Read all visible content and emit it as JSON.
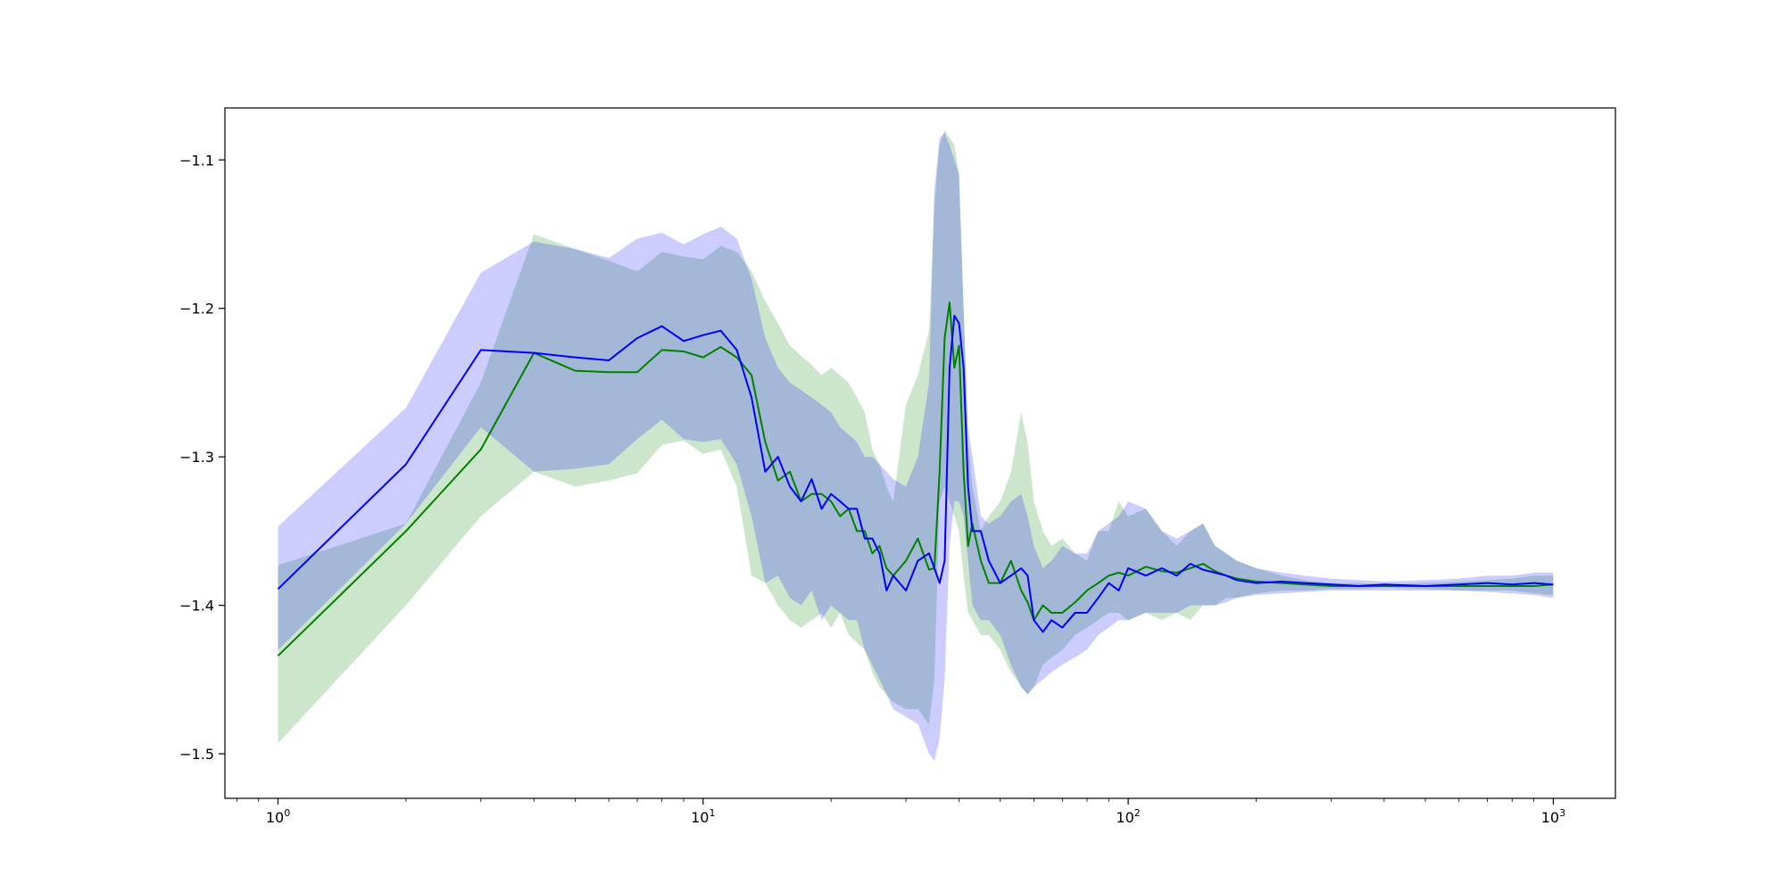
{
  "chart_data": {
    "type": "area",
    "x_scale": "log",
    "xlim": [
      0.75,
      1400
    ],
    "ylim": [
      -1.53,
      -1.065
    ],
    "x_ticks": [
      {
        "value": 1,
        "base": "10",
        "exp": "0"
      },
      {
        "value": 10,
        "base": "10",
        "exp": "1"
      },
      {
        "value": 100,
        "base": "10",
        "exp": "2"
      },
      {
        "value": 1000,
        "base": "10",
        "exp": "3"
      }
    ],
    "y_ticks": [
      {
        "value": -1.1,
        "label": "−1.1"
      },
      {
        "value": -1.2,
        "label": "−1.2"
      },
      {
        "value": -1.3,
        "label": "−1.3"
      },
      {
        "value": -1.4,
        "label": "−1.4"
      },
      {
        "value": -1.5,
        "label": "−1.5"
      }
    ],
    "grid": false,
    "series": [
      {
        "color": "#008000",
        "band_color": "#008000",
        "x": [
          1,
          2,
          3,
          4,
          5,
          6,
          7,
          8,
          9,
          10,
          11,
          12,
          13,
          14,
          15,
          16,
          17,
          18,
          19,
          20,
          21,
          22,
          23,
          24,
          25,
          26,
          27,
          28,
          30,
          32,
          34,
          35,
          36,
          37,
          38,
          39,
          40,
          41,
          42,
          43,
          45,
          47,
          50,
          53,
          56,
          58,
          60,
          63,
          66,
          70,
          75,
          80,
          85,
          90,
          95,
          100,
          110,
          120,
          130,
          140,
          150,
          160,
          170,
          180,
          200,
          230,
          260,
          300,
          350,
          400,
          500,
          600,
          700,
          800,
          900,
          1000
        ],
        "y": [
          -1.434,
          -1.35,
          -1.295,
          -1.23,
          -1.242,
          -1.243,
          -1.243,
          -1.228,
          -1.229,
          -1.233,
          -1.226,
          -1.233,
          -1.245,
          -1.29,
          -1.316,
          -1.31,
          -1.33,
          -1.325,
          -1.325,
          -1.33,
          -1.34,
          -1.335,
          -1.35,
          -1.35,
          -1.365,
          -1.36,
          -1.375,
          -1.38,
          -1.37,
          -1.355,
          -1.376,
          -1.375,
          -1.31,
          -1.22,
          -1.196,
          -1.24,
          -1.225,
          -1.31,
          -1.36,
          -1.345,
          -1.37,
          -1.385,
          -1.385,
          -1.37,
          -1.39,
          -1.398,
          -1.41,
          -1.4,
          -1.405,
          -1.405,
          -1.398,
          -1.39,
          -1.385,
          -1.38,
          -1.378,
          -1.38,
          -1.374,
          -1.377,
          -1.378,
          -1.375,
          -1.372,
          -1.377,
          -1.38,
          -1.382,
          -1.384,
          -1.385,
          -1.386,
          -1.387,
          -1.387,
          -1.387,
          -1.387,
          -1.387,
          -1.387,
          -1.387,
          -1.387,
          -1.386
        ],
        "upper": [
          -1.373,
          -1.345,
          -1.25,
          -1.15,
          -1.16,
          -1.168,
          -1.175,
          -1.162,
          -1.165,
          -1.167,
          -1.158,
          -1.162,
          -1.175,
          -1.195,
          -1.21,
          -1.225,
          -1.232,
          -1.238,
          -1.245,
          -1.24,
          -1.245,
          -1.25,
          -1.26,
          -1.27,
          -1.295,
          -1.305,
          -1.32,
          -1.33,
          -1.265,
          -1.245,
          -1.215,
          -1.13,
          -1.09,
          -1.08,
          -1.085,
          -1.09,
          -1.11,
          -1.2,
          -1.29,
          -1.32,
          -1.35,
          -1.34,
          -1.33,
          -1.31,
          -1.27,
          -1.29,
          -1.33,
          -1.35,
          -1.36,
          -1.355,
          -1.365,
          -1.37,
          -1.35,
          -1.35,
          -1.33,
          -1.34,
          -1.335,
          -1.35,
          -1.36,
          -1.35,
          -1.345,
          -1.36,
          -1.365,
          -1.37,
          -1.375,
          -1.38,
          -1.383,
          -1.385,
          -1.385,
          -1.386,
          -1.385,
          -1.384,
          -1.383,
          -1.382,
          -1.38,
          -1.38
        ],
        "lower": [
          -1.493,
          -1.4,
          -1.34,
          -1.31,
          -1.32,
          -1.316,
          -1.311,
          -1.292,
          -1.289,
          -1.298,
          -1.295,
          -1.32,
          -1.38,
          -1.385,
          -1.4,
          -1.41,
          -1.415,
          -1.41,
          -1.405,
          -1.415,
          -1.405,
          -1.42,
          -1.425,
          -1.43,
          -1.445,
          -1.455,
          -1.46,
          -1.465,
          -1.47,
          -1.47,
          -1.48,
          -1.45,
          -1.33,
          -1.32,
          -1.33,
          -1.34,
          -1.35,
          -1.38,
          -1.405,
          -1.41,
          -1.42,
          -1.42,
          -1.43,
          -1.445,
          -1.455,
          -1.46,
          -1.455,
          -1.44,
          -1.435,
          -1.43,
          -1.42,
          -1.415,
          -1.41,
          -1.405,
          -1.405,
          -1.41,
          -1.405,
          -1.41,
          -1.405,
          -1.41,
          -1.4,
          -1.4,
          -1.395,
          -1.395,
          -1.392,
          -1.39,
          -1.39,
          -1.389,
          -1.389,
          -1.388,
          -1.389,
          -1.39,
          -1.39,
          -1.39,
          -1.392,
          -1.393
        ]
      },
      {
        "color": "#0000ff",
        "band_color": "#0000ff",
        "x": [
          1,
          2,
          3,
          4,
          5,
          6,
          7,
          8,
          9,
          10,
          11,
          12,
          13,
          14,
          15,
          16,
          17,
          18,
          19,
          20,
          21,
          22,
          23,
          24,
          25,
          26,
          27,
          28,
          30,
          32,
          34,
          35,
          36,
          37,
          38,
          39,
          40,
          41,
          42,
          43,
          45,
          47,
          50,
          53,
          56,
          58,
          60,
          63,
          66,
          70,
          75,
          80,
          85,
          90,
          95,
          100,
          110,
          120,
          130,
          140,
          150,
          160,
          170,
          180,
          200,
          230,
          260,
          300,
          350,
          400,
          500,
          600,
          700,
          800,
          900,
          1000
        ],
        "y": [
          -1.389,
          -1.305,
          -1.228,
          -1.23,
          -1.233,
          -1.235,
          -1.22,
          -1.212,
          -1.222,
          -1.218,
          -1.215,
          -1.228,
          -1.26,
          -1.31,
          -1.3,
          -1.32,
          -1.33,
          -1.315,
          -1.335,
          -1.325,
          -1.33,
          -1.335,
          -1.335,
          -1.355,
          -1.355,
          -1.365,
          -1.39,
          -1.38,
          -1.39,
          -1.37,
          -1.365,
          -1.375,
          -1.385,
          -1.37,
          -1.24,
          -1.205,
          -1.21,
          -1.24,
          -1.32,
          -1.35,
          -1.35,
          -1.37,
          -1.385,
          -1.38,
          -1.375,
          -1.38,
          -1.41,
          -1.418,
          -1.41,
          -1.415,
          -1.405,
          -1.405,
          -1.395,
          -1.385,
          -1.39,
          -1.375,
          -1.38,
          -1.375,
          -1.38,
          -1.372,
          -1.376,
          -1.378,
          -1.38,
          -1.383,
          -1.385,
          -1.384,
          -1.385,
          -1.386,
          -1.387,
          -1.386,
          -1.387,
          -1.386,
          -1.385,
          -1.386,
          -1.385,
          -1.386
        ],
        "upper": [
          -1.347,
          -1.267,
          -1.176,
          -1.155,
          -1.16,
          -1.166,
          -1.153,
          -1.149,
          -1.157,
          -1.15,
          -1.145,
          -1.153,
          -1.18,
          -1.22,
          -1.24,
          -1.25,
          -1.255,
          -1.26,
          -1.265,
          -1.27,
          -1.28,
          -1.285,
          -1.29,
          -1.3,
          -1.3,
          -1.305,
          -1.31,
          -1.315,
          -1.32,
          -1.3,
          -1.25,
          -1.12,
          -1.085,
          -1.082,
          -1.09,
          -1.1,
          -1.11,
          -1.2,
          -1.28,
          -1.3,
          -1.34,
          -1.345,
          -1.34,
          -1.33,
          -1.325,
          -1.34,
          -1.36,
          -1.375,
          -1.37,
          -1.36,
          -1.365,
          -1.365,
          -1.35,
          -1.345,
          -1.34,
          -1.33,
          -1.335,
          -1.35,
          -1.355,
          -1.35,
          -1.345,
          -1.36,
          -1.365,
          -1.37,
          -1.375,
          -1.378,
          -1.38,
          -1.382,
          -1.383,
          -1.384,
          -1.383,
          -1.382,
          -1.38,
          -1.38,
          -1.378,
          -1.378
        ],
        "lower": [
          -1.43,
          -1.345,
          -1.28,
          -1.31,
          -1.308,
          -1.305,
          -1.288,
          -1.275,
          -1.288,
          -1.29,
          -1.288,
          -1.305,
          -1.34,
          -1.385,
          -1.38,
          -1.395,
          -1.4,
          -1.39,
          -1.41,
          -1.4,
          -1.405,
          -1.41,
          -1.41,
          -1.43,
          -1.44,
          -1.45,
          -1.46,
          -1.47,
          -1.475,
          -1.48,
          -1.5,
          -1.505,
          -1.49,
          -1.45,
          -1.36,
          -1.33,
          -1.33,
          -1.34,
          -1.37,
          -1.4,
          -1.41,
          -1.41,
          -1.42,
          -1.44,
          -1.455,
          -1.46,
          -1.455,
          -1.45,
          -1.445,
          -1.44,
          -1.435,
          -1.43,
          -1.42,
          -1.415,
          -1.41,
          -1.41,
          -1.405,
          -1.405,
          -1.405,
          -1.4,
          -1.4,
          -1.4,
          -1.398,
          -1.395,
          -1.393,
          -1.392,
          -1.391,
          -1.39,
          -1.39,
          -1.39,
          -1.39,
          -1.39,
          -1.391,
          -1.392,
          -1.393,
          -1.395
        ]
      }
    ]
  }
}
